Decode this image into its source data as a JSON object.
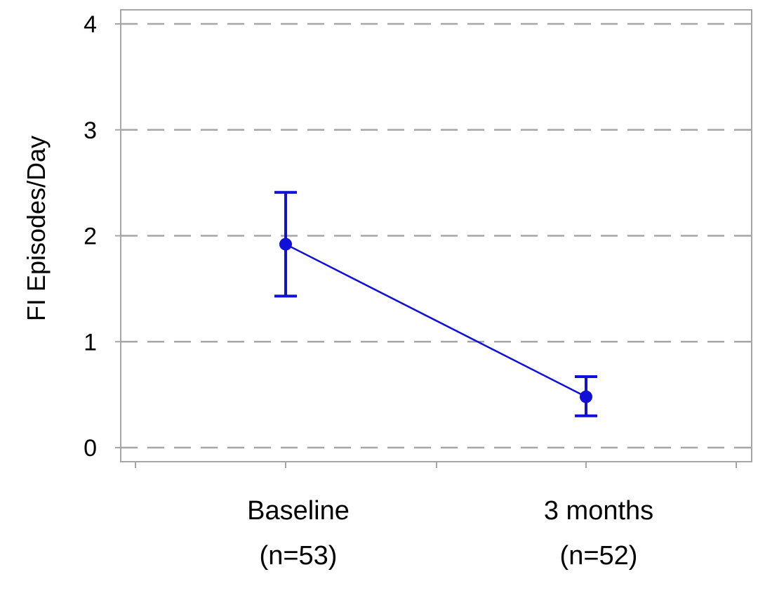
{
  "chart_data": {
    "type": "line",
    "title": "",
    "ylabel": "FI Episodes/Day",
    "xlabel": "",
    "ylim": [
      0,
      4
    ],
    "yticks": [
      "0",
      "1",
      "2",
      "3",
      "4"
    ],
    "grid": true,
    "categories": [
      {
        "line1": "Baseline",
        "line2": "(n=53)"
      },
      {
        "line1": "3 months",
        "line2": "(n=52)"
      }
    ],
    "series": [
      {
        "values": [
          1.92,
          0.48
        ],
        "error_low": [
          1.43,
          0.3
        ],
        "error_high": [
          2.41,
          0.67
        ],
        "color": "#1010d8"
      }
    ],
    "colors": {
      "grid": "#a6a6a6",
      "frame": "#a6a6a6",
      "marker": "#1010d8"
    }
  }
}
